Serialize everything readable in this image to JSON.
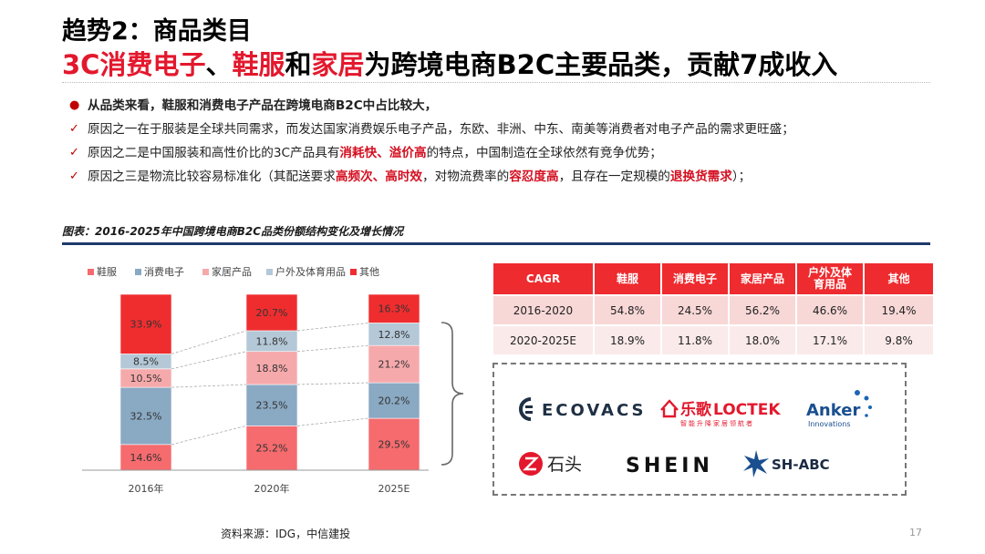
{
  "header": {
    "title_line1": "趋势2：商品类目",
    "title_line2_parts": [
      {
        "text": "3C消费电子",
        "highlight": true
      },
      {
        "text": "、",
        "highlight": false
      },
      {
        "text": "鞋服",
        "highlight": true
      },
      {
        "text": "和",
        "highlight": false
      },
      {
        "text": "家居",
        "highlight": true
      },
      {
        "text": "为跨境电商B2C主要品类，贡献7成收入",
        "highlight": false
      }
    ]
  },
  "bullets": [
    {
      "marker": "●",
      "type": "head",
      "parts": [
        {
          "text": "从品类来看，鞋服和消费电子产品在跨境电商B2C中占比较大，",
          "em": false
        }
      ]
    },
    {
      "marker": "✓",
      "type": "item",
      "parts": [
        {
          "text": "原因之一在于服装是全球共同需求，而发达国家消费娱乐电子产品，东欧、非洲、中东、南美等消费者对电子产品的需求更旺盛；",
          "em": false
        }
      ]
    },
    {
      "marker": "✓",
      "type": "item",
      "parts": [
        {
          "text": "原因之二是中国服装和高性价比的3C产品具有",
          "em": false
        },
        {
          "text": "消耗快、溢价高",
          "em": true
        },
        {
          "text": "的特点，中国制造在全球依然有竞争优势；",
          "em": false
        }
      ]
    },
    {
      "marker": "✓",
      "type": "item",
      "parts": [
        {
          "text": "原因之三是物流比较容易标准化（其配送要求",
          "em": false
        },
        {
          "text": "高频次、高时效",
          "em": true
        },
        {
          "text": "，对物流费率的",
          "em": false
        },
        {
          "text": "容忍度高",
          "em": true
        },
        {
          "text": "，且存在一定规模的",
          "em": false
        },
        {
          "text": "退换货需求",
          "em": true
        },
        {
          "text": "）；",
          "em": false
        }
      ]
    }
  ],
  "chart_caption": "图表：2016-2025年中国跨境电商B2C品类份额结构变化及增长情况",
  "chart_data": {
    "type": "bar",
    "stacked": true,
    "categories": [
      "2016年",
      "2020年",
      "2025E"
    ],
    "series": [
      {
        "name": "鞋服",
        "color": "#f56b6e",
        "values": [
          14.6,
          25.2,
          29.5
        ]
      },
      {
        "name": "消费电子",
        "color": "#8aa9c3",
        "values": [
          32.5,
          23.5,
          20.2
        ]
      },
      {
        "name": "家居产品",
        "color": "#f6a9ab",
        "values": [
          10.5,
          18.8,
          21.2
        ]
      },
      {
        "name": "户外及体育用品",
        "color": "#b4c8d7",
        "values": [
          8.5,
          11.8,
          12.8
        ]
      },
      {
        "name": "其他",
        "color": "#ef2d2f",
        "values": [
          33.9,
          20.7,
          16.3
        ]
      }
    ],
    "value_suffix": "%",
    "ylim": [
      0,
      100
    ],
    "legend_position": "top",
    "grid": false,
    "connector_lines": true
  },
  "cagr_table": {
    "headers": [
      "CAGR",
      "鞋服",
      "消费电子",
      "家居产品",
      "户外及体育用品",
      "其他"
    ],
    "rows": [
      [
        "2016-2020",
        "54.8%",
        "24.5%",
        "56.2%",
        "46.6%",
        "19.4%"
      ],
      [
        "2020-2025E",
        "18.9%",
        "11.8%",
        "18.0%",
        "17.1%",
        "9.8%"
      ]
    ]
  },
  "logos": {
    "ecovacs": "ECOVACS",
    "loctek_cn": "乐歌",
    "loctek_en": "LOCTEK",
    "loctek_tagline": "智能升降家居领航者",
    "anker": "Anker",
    "anker_tagline": "Innovations",
    "roborock": "石头",
    "shein": "SHEIN",
    "shabc": "SH-ABC"
  },
  "colors": {
    "accent": "#e3182d",
    "navy": "#1f3a6b",
    "table_header": "#ee2b2f",
    "table_row1": "#f8d7d7",
    "table_row2": "#fbeaea"
  },
  "footer": {
    "source": "资料来源：IDG，中信建投",
    "page": "17"
  }
}
